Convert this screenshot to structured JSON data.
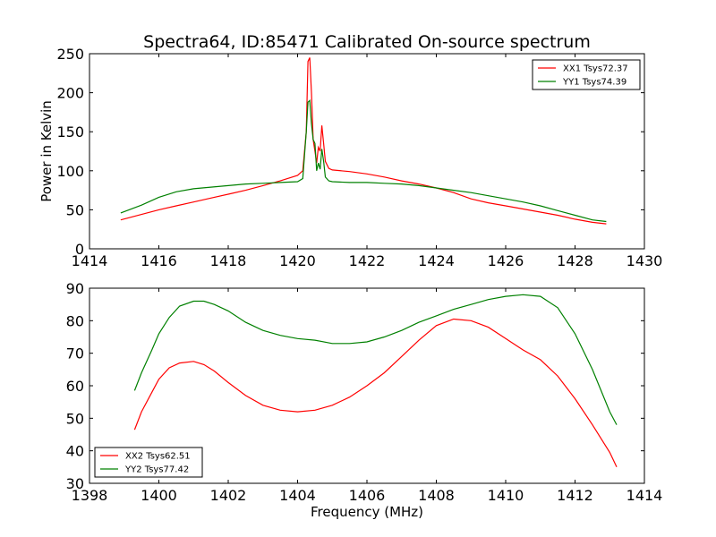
{
  "title": "Spectra64, ID:85471 Calibrated On-source spectrum",
  "chart_data": [
    {
      "type": "line",
      "title": "Spectra64, ID:85471 Calibrated On-source spectrum",
      "xlabel": "",
      "ylabel": "Power in Kelvin",
      "xlim": [
        1414,
        1430
      ],
      "ylim": [
        0,
        250
      ],
      "xticks": [
        1414,
        1416,
        1418,
        1420,
        1422,
        1424,
        1426,
        1428,
        1430
      ],
      "yticks": [
        0,
        50,
        100,
        150,
        200,
        250
      ],
      "legend_position": "top-right",
      "grid": false,
      "series": [
        {
          "name": "XX1 Tsys72.37",
          "color": "#ff0000",
          "x": [
            1414.9,
            1415.5,
            1416.0,
            1416.5,
            1417.0,
            1417.5,
            1418.0,
            1418.5,
            1419.0,
            1419.5,
            1420.0,
            1420.15,
            1420.25,
            1420.3,
            1420.35,
            1420.4,
            1420.45,
            1420.5,
            1420.55,
            1420.6,
            1420.65,
            1420.7,
            1420.75,
            1420.8,
            1420.9,
            1421.0,
            1421.5,
            1422.0,
            1422.5,
            1423.0,
            1423.5,
            1424.0,
            1424.5,
            1425.0,
            1425.5,
            1426.0,
            1426.5,
            1427.0,
            1427.5,
            1428.0,
            1428.5,
            1428.9
          ],
          "y": [
            37,
            44,
            50,
            55,
            60,
            65,
            70,
            75,
            81,
            87,
            94,
            100,
            150,
            240,
            245,
            200,
            140,
            125,
            110,
            130,
            125,
            158,
            135,
            112,
            103,
            101,
            99,
            96,
            92,
            87,
            83,
            78,
            72,
            64,
            59,
            55,
            51,
            47,
            43,
            38,
            34,
            32
          ]
        },
        {
          "name": "YY1 Tsys74.39",
          "color": "#008000",
          "x": [
            1414.9,
            1415.5,
            1416.0,
            1416.5,
            1417.0,
            1417.5,
            1418.0,
            1418.5,
            1419.0,
            1419.5,
            1420.0,
            1420.15,
            1420.25,
            1420.3,
            1420.35,
            1420.4,
            1420.45,
            1420.5,
            1420.55,
            1420.6,
            1420.65,
            1420.7,
            1420.75,
            1420.8,
            1420.9,
            1421.0,
            1421.5,
            1422.0,
            1422.5,
            1423.0,
            1423.5,
            1424.0,
            1424.5,
            1425.0,
            1425.5,
            1426.0,
            1426.5,
            1427.0,
            1427.5,
            1428.0,
            1428.5,
            1428.9
          ],
          "y": [
            46,
            56,
            66,
            73,
            77,
            79,
            81,
            83,
            84,
            85,
            86,
            90,
            150,
            188,
            190,
            160,
            140,
            135,
            100,
            110,
            102,
            128,
            112,
            92,
            87,
            86,
            85,
            85,
            84,
            83,
            81,
            78,
            75,
            72,
            68,
            64,
            60,
            55,
            49,
            43,
            37,
            35
          ]
        }
      ]
    },
    {
      "type": "line",
      "title": "",
      "xlabel": "Frequency (MHz)",
      "ylabel": "",
      "xlim": [
        1398,
        1414
      ],
      "ylim": [
        30,
        90
      ],
      "xticks": [
        1398,
        1400,
        1402,
        1404,
        1406,
        1408,
        1410,
        1412,
        1414
      ],
      "yticks": [
        30,
        40,
        50,
        60,
        70,
        80,
        90
      ],
      "legend_position": "bottom-left",
      "grid": false,
      "series": [
        {
          "name": "XX2 Tsys62.51",
          "color": "#ff0000",
          "x": [
            1399.3,
            1399.5,
            1399.8,
            1400.0,
            1400.3,
            1400.6,
            1401.0,
            1401.3,
            1401.6,
            1402.0,
            1402.5,
            1403.0,
            1403.5,
            1404.0,
            1404.5,
            1405.0,
            1405.5,
            1406.0,
            1406.5,
            1407.0,
            1407.5,
            1408.0,
            1408.5,
            1409.0,
            1409.5,
            1410.0,
            1410.5,
            1411.0,
            1411.5,
            1412.0,
            1412.5,
            1413.0,
            1413.2
          ],
          "y": [
            46.5,
            52,
            58,
            62,
            65.5,
            67,
            67.5,
            66.5,
            64.5,
            61,
            57,
            54,
            52.5,
            52,
            52.5,
            54,
            56.5,
            60,
            64,
            69,
            74,
            78.5,
            80.5,
            80,
            78,
            74.5,
            71,
            68,
            63,
            56,
            48,
            39.5,
            35
          ]
        },
        {
          "name": "YY2 Tsys77.42",
          "color": "#008000",
          "x": [
            1399.3,
            1399.5,
            1399.8,
            1400.0,
            1400.3,
            1400.6,
            1401.0,
            1401.3,
            1401.6,
            1402.0,
            1402.5,
            1403.0,
            1403.5,
            1404.0,
            1404.5,
            1405.0,
            1405.5,
            1406.0,
            1406.5,
            1407.0,
            1407.5,
            1408.0,
            1408.5,
            1409.0,
            1409.5,
            1410.0,
            1410.5,
            1411.0,
            1411.5,
            1412.0,
            1412.5,
            1413.0,
            1413.2
          ],
          "y": [
            58.5,
            64,
            71,
            76,
            81,
            84.5,
            86,
            86,
            85,
            83,
            79.5,
            77,
            75.5,
            74.5,
            74,
            73,
            73,
            73.5,
            75,
            77,
            79.5,
            81.5,
            83.5,
            85,
            86.5,
            87.5,
            88,
            87.5,
            84,
            76,
            65,
            52,
            48
          ]
        }
      ]
    }
  ]
}
